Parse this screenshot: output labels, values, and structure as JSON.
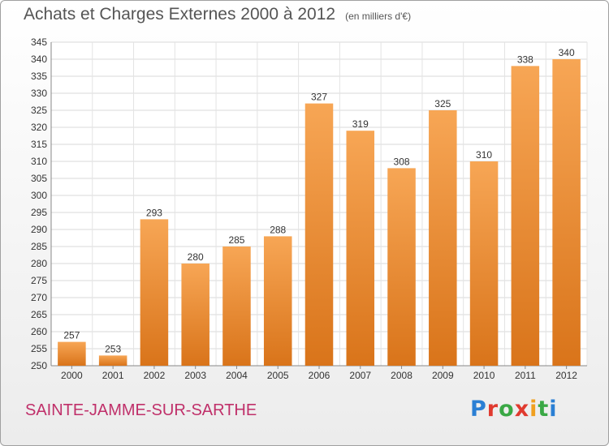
{
  "header": {
    "title": "Achats et Charges Externes 2000 à 2012",
    "subtitle": "(en milliers d'€)"
  },
  "footer": {
    "city": "SAINTE-JAMME-SUR-SARTHE",
    "logo": "Proxiti"
  },
  "colors": {
    "bar_top": "#f7a655",
    "bar_bottom": "#d9741a",
    "title": "#555555",
    "city": "#c0306a"
  },
  "chart_data": {
    "type": "bar",
    "title": "Achats et Charges Externes 2000 à 2012",
    "subtitle": "(en milliers d'€)",
    "categories": [
      "2000",
      "2001",
      "2002",
      "2003",
      "2004",
      "2005",
      "2006",
      "2007",
      "2008",
      "2009",
      "2010",
      "2011",
      "2012"
    ],
    "values": [
      257,
      253,
      293,
      280,
      285,
      288,
      327,
      319,
      308,
      325,
      310,
      338,
      340
    ],
    "ylim": [
      250,
      345
    ],
    "ytick_step": 5,
    "grid": true,
    "legend": "none"
  }
}
